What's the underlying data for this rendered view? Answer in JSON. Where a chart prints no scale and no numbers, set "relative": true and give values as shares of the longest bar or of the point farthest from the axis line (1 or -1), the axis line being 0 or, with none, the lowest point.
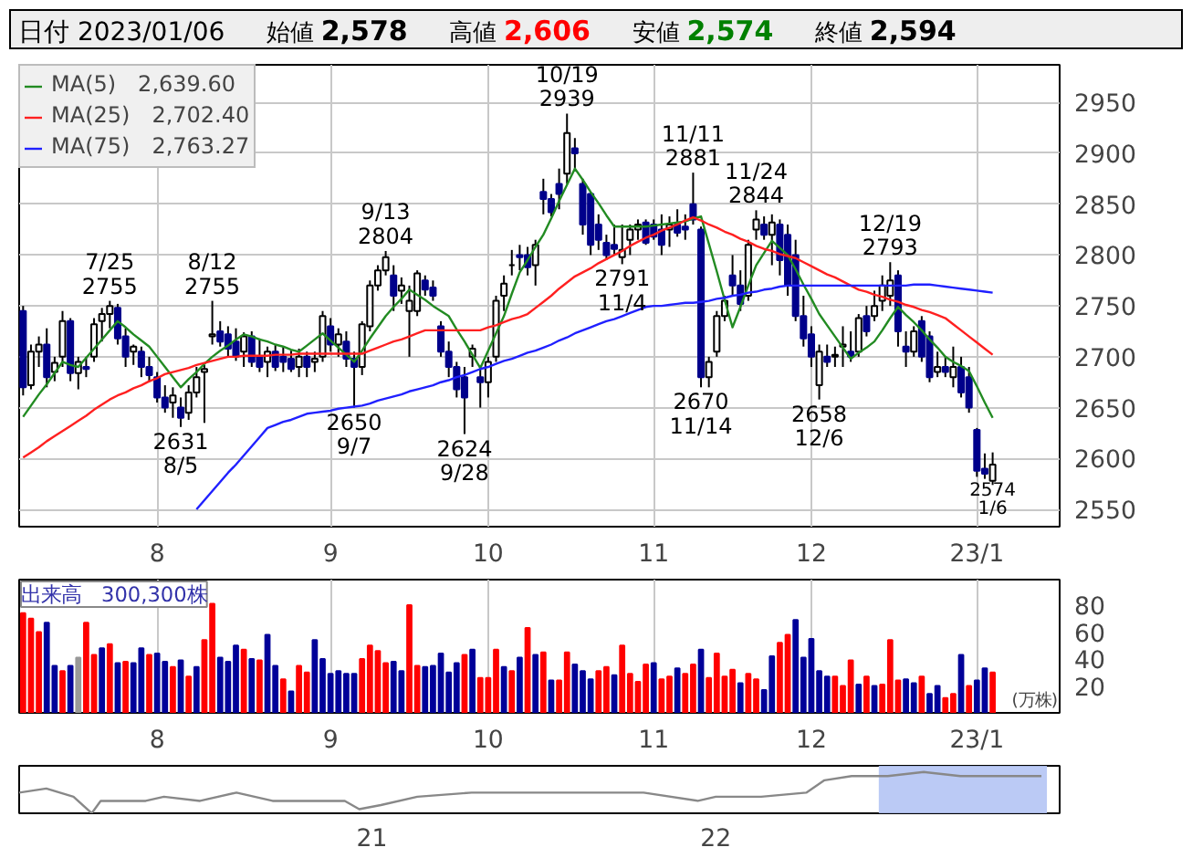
{
  "chart_data": [
    {
      "type": "candlestick",
      "title": "日付 2023/01/06",
      "categories": [
        null,
        null,
        null,
        null,
        null,
        null,
        null,
        null,
        null,
        null,
        null,
        null,
        null,
        null,
        null,
        null,
        null,
        "8",
        null,
        null,
        null,
        null,
        null,
        null,
        null,
        null,
        null,
        null,
        null,
        null,
        null,
        null,
        null,
        null,
        null,
        null,
        null,
        null,
        null,
        "9",
        null,
        null,
        null,
        null,
        null,
        null,
        null,
        null,
        null,
        null,
        null,
        null,
        null,
        null,
        null,
        null,
        null,
        null,
        null,
        "10",
        null,
        null,
        null,
        null,
        null,
        null,
        null,
        null,
        null,
        null,
        null,
        null,
        null,
        null,
        null,
        null,
        null,
        null,
        null,
        null,
        "11",
        null,
        null,
        null,
        null,
        null,
        null,
        null,
        null,
        null,
        null,
        null,
        null,
        null,
        null,
        null,
        null,
        null,
        null,
        null,
        "12",
        null,
        null,
        null,
        null,
        null,
        null,
        null,
        null,
        null,
        null,
        null,
        null,
        null,
        null,
        null,
        null,
        null,
        null,
        null,
        null,
        "23/1",
        null,
        null
      ],
      "ohlc": [
        [
          2745,
          2750,
          2662,
          2670
        ],
        [
          2672,
          2712,
          2668,
          2705
        ],
        [
          2705,
          2720,
          2690,
          2712
        ],
        [
          2712,
          2728,
          2670,
          2680
        ],
        [
          2685,
          2700,
          2676,
          2694
        ],
        [
          2700,
          2745,
          2690,
          2735
        ],
        [
          2735,
          2738,
          2676,
          2684
        ],
        [
          2684,
          2700,
          2668,
          2695
        ],
        [
          2690,
          2700,
          2680,
          2688
        ],
        [
          2700,
          2738,
          2695,
          2732
        ],
        [
          2735,
          2748,
          2715,
          2742
        ],
        [
          2742,
          2755,
          2728,
          2750
        ],
        [
          2748,
          2752,
          2712,
          2718
        ],
        [
          2720,
          2728,
          2690,
          2700
        ],
        [
          2705,
          2712,
          2692,
          2710
        ],
        [
          2705,
          2710,
          2680,
          2690
        ],
        [
          2690,
          2700,
          2675,
          2682
        ],
        [
          2680,
          2685,
          2655,
          2660
        ],
        [
          2660,
          2672,
          2645,
          2650
        ],
        [
          2655,
          2670,
          2640,
          2662
        ],
        [
          2650,
          2660,
          2631,
          2640
        ],
        [
          2645,
          2672,
          2638,
          2665
        ],
        [
          2665,
          2690,
          2660,
          2680
        ],
        [
          2685,
          2692,
          2635,
          2688
        ],
        [
          2720,
          2755,
          2712,
          2722
        ],
        [
          2725,
          2735,
          2710,
          2715
        ],
        [
          2722,
          2730,
          2700,
          2708
        ],
        [
          2715,
          2728,
          2696,
          2700
        ],
        [
          2705,
          2724,
          2690,
          2720
        ],
        [
          2720,
          2725,
          2690,
          2695
        ],
        [
          2700,
          2718,
          2685,
          2690
        ],
        [
          2695,
          2710,
          2680,
          2705
        ],
        [
          2705,
          2712,
          2686,
          2690
        ],
        [
          2700,
          2710,
          2685,
          2695
        ],
        [
          2698,
          2706,
          2685,
          2688
        ],
        [
          2690,
          2708,
          2680,
          2700
        ],
        [
          2700,
          2705,
          2680,
          2690
        ],
        [
          2695,
          2705,
          2685,
          2698
        ],
        [
          2700,
          2745,
          2695,
          2740
        ],
        [
          2730,
          2738,
          2705,
          2712
        ],
        [
          2712,
          2728,
          2700,
          2722
        ],
        [
          2715,
          2725,
          2690,
          2698
        ],
        [
          2698,
          2705,
          2650,
          2690
        ],
        [
          2690,
          2735,
          2682,
          2732
        ],
        [
          2730,
          2775,
          2725,
          2770
        ],
        [
          2770,
          2790,
          2765,
          2785
        ],
        [
          2785,
          2804,
          2780,
          2798
        ],
        [
          2780,
          2790,
          2745,
          2760
        ],
        [
          2765,
          2778,
          2752,
          2770
        ],
        [
          2745,
          2770,
          2700,
          2755
        ],
        [
          2745,
          2785,
          2740,
          2782
        ],
        [
          2775,
          2780,
          2760,
          2766
        ],
        [
          2768,
          2775,
          2755,
          2760
        ],
        [
          2730,
          2735,
          2700,
          2705
        ],
        [
          2705,
          2715,
          2680,
          2690
        ],
        [
          2690,
          2695,
          2660,
          2668
        ],
        [
          2680,
          2690,
          2624,
          2660
        ],
        [
          2700,
          2712,
          2690,
          2708
        ],
        [
          2680,
          2690,
          2650,
          2675
        ],
        [
          2675,
          2700,
          2660,
          2695
        ],
        [
          2700,
          2760,
          2695,
          2755
        ],
        [
          2760,
          2780,
          2745,
          2772
        ],
        [
          2790,
          2805,
          2780,
          2790
        ],
        [
          2800,
          2810,
          2785,
          2798
        ],
        [
          2800,
          2808,
          2780,
          2788
        ],
        [
          2790,
          2815,
          2770,
          2810
        ],
        [
          2862,
          2875,
          2840,
          2855
        ],
        [
          2855,
          2860,
          2838,
          2842
        ],
        [
          2870,
          2885,
          2845,
          2860
        ],
        [
          2880,
          2939,
          2870,
          2920
        ],
        [
          2905,
          2915,
          2885,
          2900
        ],
        [
          2870,
          2875,
          2820,
          2830
        ],
        [
          2860,
          2862,
          2800,
          2810
        ],
        [
          2830,
          2840,
          2805,
          2815
        ],
        [
          2812,
          2820,
          2795,
          2800
        ],
        [
          2810,
          2830,
          2800,
          2806
        ],
        [
          2798,
          2830,
          2791,
          2805
        ],
        [
          2815,
          2830,
          2800,
          2825
        ],
        [
          2825,
          2835,
          2815,
          2830
        ],
        [
          2832,
          2835,
          2810,
          2812
        ],
        [
          2830,
          2835,
          2815,
          2818
        ],
        [
          2825,
          2840,
          2800,
          2810
        ],
        [
          2825,
          2838,
          2808,
          2830
        ],
        [
          2830,
          2845,
          2818,
          2822
        ],
        [
          2828,
          2840,
          2815,
          2825
        ],
        [
          2850,
          2881,
          2830,
          2835
        ],
        [
          2825,
          2828,
          2670,
          2680
        ],
        [
          2680,
          2700,
          2670,
          2695
        ],
        [
          2705,
          2745,
          2700,
          2740
        ],
        [
          2740,
          2760,
          2735,
          2755
        ],
        [
          2780,
          2800,
          2760,
          2770
        ],
        [
          2770,
          2785,
          2745,
          2752
        ],
        [
          2760,
          2815,
          2755,
          2810
        ],
        [
          2825,
          2844,
          2815,
          2835
        ],
        [
          2830,
          2838,
          2815,
          2820
        ],
        [
          2820,
          2840,
          2790,
          2832
        ],
        [
          2830,
          2835,
          2780,
          2795
        ],
        [
          2820,
          2830,
          2760,
          2770
        ],
        [
          2800,
          2815,
          2735,
          2740
        ],
        [
          2740,
          2760,
          2710,
          2718
        ],
        [
          2722,
          2730,
          2690,
          2700
        ],
        [
          2672,
          2712,
          2658,
          2705
        ],
        [
          2700,
          2712,
          2690,
          2695
        ],
        [
          2700,
          2710,
          2690,
          2702
        ],
        [
          2710,
          2730,
          2690,
          2712
        ],
        [
          2705,
          2725,
          2695,
          2700
        ],
        [
          2705,
          2742,
          2700,
          2738
        ],
        [
          2740,
          2750,
          2720,
          2725
        ],
        [
          2740,
          2765,
          2735,
          2750
        ],
        [
          2755,
          2780,
          2745,
          2770
        ],
        [
          2760,
          2793,
          2750,
          2775
        ],
        [
          2780,
          2785,
          2710,
          2725
        ],
        [
          2710,
          2725,
          2690,
          2705
        ],
        [
          2705,
          2730,
          2700,
          2725
        ],
        [
          2735,
          2740,
          2695,
          2700
        ],
        [
          2720,
          2725,
          2675,
          2680
        ],
        [
          2685,
          2705,
          2680,
          2690
        ],
        [
          2690,
          2700,
          2680,
          2685
        ],
        [
          2680,
          2710,
          2670,
          2690
        ],
        [
          2690,
          2700,
          2660,
          2665
        ],
        [
          2680,
          2690,
          2645,
          2650
        ],
        [
          2628,
          2630,
          2582,
          2588
        ],
        [
          2590,
          2605,
          2580,
          2585
        ],
        [
          2578,
          2606,
          2574,
          2594
        ]
      ],
      "ylim": [
        2533,
        2987
      ],
      "yticks": [
        2550,
        2600,
        2650,
        2700,
        2750,
        2800,
        2850,
        2900,
        2950
      ],
      "grid": true,
      "legend": "top left",
      "series": [
        {
          "name": "MA(5)　2,639.60",
          "type": "line",
          "color": "#228b22",
          "values": [
            2641,
            2652,
            2663,
            2673,
            2684,
            2695,
            2692,
            2690,
            2699,
            2708,
            2717,
            2726,
            2735,
            2729,
            2722,
            2716,
            2710,
            2700,
            2690,
            2680,
            2670,
            2678,
            2685,
            2693,
            2700,
            2706,
            2711,
            2717,
            2722,
            2720,
            2717,
            2715,
            2712,
            2710,
            2707,
            2705,
            2711,
            2717,
            2723,
            2716,
            2709,
            2702,
            2695,
            2706,
            2718,
            2729,
            2740,
            2749,
            2757,
            2766,
            2761,
            2756,
            2750,
            2745,
            2740,
            2727,
            2715,
            2702,
            2689,
            2706,
            2723,
            2740,
            2762,
            2783,
            2795,
            2808,
            2820,
            2836,
            2853,
            2869,
            2885,
            2874,
            2862,
            2851,
            2839,
            2828,
            2828,
            2828,
            2828,
            2828,
            2829,
            2830,
            2831,
            2832,
            2833,
            2836,
            2838,
            2811,
            2784,
            2756,
            2729,
            2749,
            2770,
            2790,
            2802,
            2814,
            2807,
            2800,
            2786,
            2771,
            2757,
            2742,
            2731,
            2720,
            2709,
            2698,
            2704,
            2709,
            2715,
            2726,
            2738,
            2749,
            2741,
            2734,
            2726,
            2717,
            2709,
            2700,
            2695,
            2691,
            2686,
            2671,
            2655,
            2640
          ]
        },
        {
          "name": "MA(25)　2,702.40",
          "type": "line",
          "color": "#ff2020",
          "values": [
            2601,
            2606,
            2611,
            2617,
            2622,
            2627,
            2632,
            2637,
            2642,
            2648,
            2653,
            2658,
            2662,
            2665,
            2669,
            2672,
            2676,
            2679,
            2683,
            2685,
            2687,
            2689,
            2692,
            2694,
            2696,
            2698,
            2700,
            2700,
            2701,
            2701,
            2701,
            2701,
            2702,
            2702,
            2702,
            2703,
            2703,
            2703,
            2703,
            2703,
            2703,
            2703,
            2703,
            2703,
            2706,
            2709,
            2712,
            2715,
            2717,
            2720,
            2723,
            2726,
            2726,
            2726,
            2726,
            2726,
            2726,
            2726,
            2726,
            2729,
            2731,
            2734,
            2737,
            2739,
            2742,
            2748,
            2754,
            2760,
            2767,
            2773,
            2779,
            2783,
            2787,
            2792,
            2796,
            2800,
            2804,
            2809,
            2813,
            2817,
            2820,
            2824,
            2827,
            2830,
            2834,
            2837,
            2834,
            2830,
            2827,
            2823,
            2820,
            2816,
            2813,
            2809,
            2806,
            2804,
            2801,
            2799,
            2797,
            2793,
            2789,
            2785,
            2781,
            2778,
            2774,
            2770,
            2766,
            2764,
            2761,
            2759,
            2756,
            2754,
            2751,
            2749,
            2746,
            2744,
            2741,
            2738,
            2732,
            2726,
            2720,
            2714,
            2708,
            2702
          ]
        },
        {
          "name": "MA(75)　2,763.27",
          "type": "line",
          "color": "#2020ff",
          "values": [
            null,
            null,
            null,
            null,
            null,
            null,
            null,
            null,
            null,
            null,
            null,
            null,
            null,
            null,
            null,
            null,
            null,
            null,
            null,
            null,
            null,
            null,
            2550,
            2559,
            2568,
            2577,
            2586,
            2594,
            2603,
            2612,
            2621,
            2630,
            2633,
            2636,
            2638,
            2641,
            2644,
            2645,
            2646,
            2647,
            2649,
            2650,
            2651,
            2652,
            2654,
            2657,
            2659,
            2661,
            2663,
            2666,
            2668,
            2670,
            2672,
            2675,
            2677,
            2680,
            2682,
            2685,
            2688,
            2690,
            2693,
            2696,
            2698,
            2701,
            2704,
            2706,
            2709,
            2712,
            2716,
            2719,
            2723,
            2726,
            2729,
            2732,
            2735,
            2737,
            2740,
            2743,
            2746,
            2749,
            2750,
            2750,
            2751,
            2752,
            2753,
            2753,
            2754,
            2755,
            2757,
            2758,
            2760,
            2761,
            2763,
            2764,
            2766,
            2767,
            2769,
            2770,
            2770,
            2770,
            2770,
            2770,
            2770,
            2770,
            2770,
            2770,
            2770,
            2770,
            2770,
            2770,
            2770,
            2770,
            2770,
            2771,
            2771,
            2771,
            2770,
            2769,
            2768,
            2767,
            2766,
            2765,
            2764,
            2763
          ]
        }
      ],
      "annotations": [
        "始値 2,578",
        "高値 2,606",
        "安値 2,574",
        "終値 2,594",
        {
          "text": "7/25\n2755",
          "y": 2755
        },
        {
          "text": "2631\n8/5",
          "y": 2631
        },
        {
          "text": "8/12\n2755",
          "y": 2755
        },
        {
          "text": "2650\n9/7",
          "y": 2650
        },
        {
          "text": "9/13\n2804",
          "y": 2804
        },
        {
          "text": "2624\n9/28",
          "y": 2624
        },
        {
          "text": "10/19\n2939",
          "y": 2939
        },
        {
          "text": "2791\n11/4",
          "y": 2791
        },
        {
          "text": "11/11\n2881",
          "y": 2881
        },
        {
          "text": "2670\n11/14",
          "y": 2670
        },
        {
          "text": "11/24\n2844",
          "y": 2844
        },
        {
          "text": "2658\n12/6",
          "y": 2658
        },
        {
          "text": "12/19\n2793",
          "y": 2793
        },
        {
          "text": "2574\n1/6",
          "y": 2574
        }
      ]
    },
    {
      "type": "bar",
      "title": "出来高　300,300株",
      "ylabel": "(万株)",
      "categories": [
        null,
        null,
        null,
        null,
        null,
        null,
        null,
        null,
        null,
        null,
        null,
        null,
        null,
        null,
        null,
        null,
        null,
        "8",
        null,
        null,
        null,
        null,
        null,
        null,
        null,
        null,
        null,
        null,
        null,
        null,
        null,
        null,
        null,
        null,
        null,
        null,
        null,
        null,
        null,
        "9",
        null,
        null,
        null,
        null,
        null,
        null,
        null,
        null,
        null,
        null,
        null,
        null,
        null,
        null,
        null,
        null,
        null,
        null,
        null,
        "10",
        null,
        null,
        null,
        null,
        null,
        null,
        null,
        null,
        null,
        null,
        null,
        null,
        null,
        null,
        null,
        null,
        null,
        null,
        null,
        null,
        "11",
        null,
        null,
        null,
        null,
        null,
        null,
        null,
        null,
        null,
        null,
        null,
        null,
        null,
        null,
        null,
        null,
        null,
        null,
        null,
        "12",
        null,
        null,
        null,
        null,
        null,
        null,
        null,
        null,
        null,
        null,
        null,
        null,
        null,
        null,
        null,
        null,
        null,
        null,
        null,
        null,
        "23/1",
        null,
        null
      ],
      "values": [
        74,
        70,
        60,
        67,
        35,
        31,
        35,
        41,
        67,
        43,
        48,
        51,
        37,
        38,
        37,
        48,
        43,
        44,
        38,
        34,
        39,
        27,
        34,
        54,
        81,
        41,
        38,
        50,
        47,
        40,
        39,
        58,
        35,
        25,
        16,
        35,
        30,
        54,
        40,
        29,
        31,
        29,
        29,
        40,
        50,
        46,
        37,
        38,
        31,
        80,
        35,
        34,
        35,
        44,
        30,
        37,
        43,
        47,
        26,
        26,
        47,
        34,
        31,
        41,
        63,
        43,
        45,
        24,
        24,
        45,
        36,
        31,
        25,
        31,
        34,
        28,
        50,
        29,
        23,
        36,
        37,
        25,
        27,
        33,
        29,
        36,
        47,
        26,
        44,
        27,
        32,
        22,
        29,
        25,
        17,
        42,
        52,
        58,
        69,
        41,
        55,
        31,
        27,
        27,
        20,
        39,
        21,
        27,
        20,
        21,
        54,
        24,
        25,
        22,
        27,
        14,
        20,
        11,
        14,
        43,
        20,
        24,
        33,
        30
      ],
      "colors": [
        "#ff0000",
        "#ff0000",
        "#ff0000",
        "#000099",
        "#000099",
        "#ff0000",
        "#000099",
        "#999999",
        "#ff0000",
        "#ff0000",
        "#000099",
        "#ff0000",
        "#000099",
        "#ff0000",
        "#000099",
        "#000099",
        "#ff0000",
        "#000099",
        "#000099",
        "#ff0000",
        "#000099",
        "#ff0000",
        "#000099",
        "#ff0000",
        "#ff0000",
        "#000099",
        "#000099",
        "#000099",
        "#ff0000",
        "#000099",
        "#ff0000",
        "#000099",
        "#000099",
        "#ff0000",
        "#000099",
        "#ff0000",
        "#ff0000",
        "#000099",
        "#000099",
        "#000099",
        "#000099",
        "#000099",
        "#000099",
        "#ff0000",
        "#ff0000",
        "#ff0000",
        "#ff0000",
        "#000099",
        "#000099",
        "#ff0000",
        "#ff0000",
        "#000099",
        "#000099",
        "#000099",
        "#000099",
        "#000099",
        "#ff0000",
        "#000099",
        "#ff0000",
        "#ff0000",
        "#ff0000",
        "#000099",
        "#ff0000",
        "#000099",
        "#ff0000",
        "#000099",
        "#ff0000",
        "#000099",
        "#ff0000",
        "#ff0000",
        "#000099",
        "#000099",
        "#000099",
        "#ff0000",
        "#ff0000",
        "#000099",
        "#ff0000",
        "#ff0000",
        "#ff0000",
        "#ff0000",
        "#000099",
        "#ff0000",
        "#ff0000",
        "#000099",
        "#ff0000",
        "#ff0000",
        "#000099",
        "#ff0000",
        "#ff0000",
        "#ff0000",
        "#ff0000",
        "#000099",
        "#ff0000",
        "#ff0000",
        "#000099",
        "#000099",
        "#ff0000",
        "#ff0000",
        "#000099",
        "#000099",
        "#000099",
        "#000099",
        "#000099",
        "#ff0000",
        "#ff0000",
        "#ff0000",
        "#000099",
        "#ff0000",
        "#000099",
        "#ff0000",
        "#ff0000",
        "#ff0000",
        "#000099",
        "#000099",
        "#ff0000",
        "#000099",
        "#000099",
        "#ff0000",
        "#ff0000",
        "#000099",
        "#ff0000",
        "#000099",
        "#000099",
        "#ff0000"
      ],
      "ylim": [
        0,
        99
      ],
      "yticks": [
        20,
        40,
        60,
        80
      ],
      "grid": "x"
    },
    {
      "type": "line",
      "relative": true,
      "tick_labels": "x",
      "x": [
        2019.974,
        2020.053,
        2020.132,
        2020.185,
        2020.211,
        2020.342,
        2020.395,
        2020.5,
        2020.606,
        2020.711,
        2020.816,
        2020.921,
        2020.963,
        2021.026,
        2021.132,
        2021.29,
        2021.5,
        2021.658,
        2021.79,
        2021.948,
        2022.0,
        2022.132,
        2022.263,
        2022.316,
        2022.395,
        2022.5,
        2022.605,
        2022.711,
        2022.805,
        2022.947
      ],
      "series": [
        {
          "color": "#888888",
          "values": [
            0.5,
            0.6,
            0.4,
            0,
            0.3,
            0.3,
            0.4,
            0.3,
            0.5,
            0.3,
            0.3,
            0.3,
            0.1,
            0.2,
            0.4,
            0.5,
            0.5,
            0.5,
            0.5,
            0.3,
            0.4,
            0.4,
            0.5,
            0.8,
            0.9,
            0.9,
            1,
            0.9,
            0.9,
            0.9
          ]
        }
      ],
      "xlim": [
        2019.974,
        2023.0
      ],
      "xticks": [
        {
          "value": 2021,
          "label": "21"
        },
        {
          "value": 2022,
          "label": "22"
        }
      ],
      "bands": [
        {
          "axis": "x",
          "from": 2022.474,
          "to": 2022.963,
          "color": "#b4c4f4"
        }
      ]
    }
  ]
}
